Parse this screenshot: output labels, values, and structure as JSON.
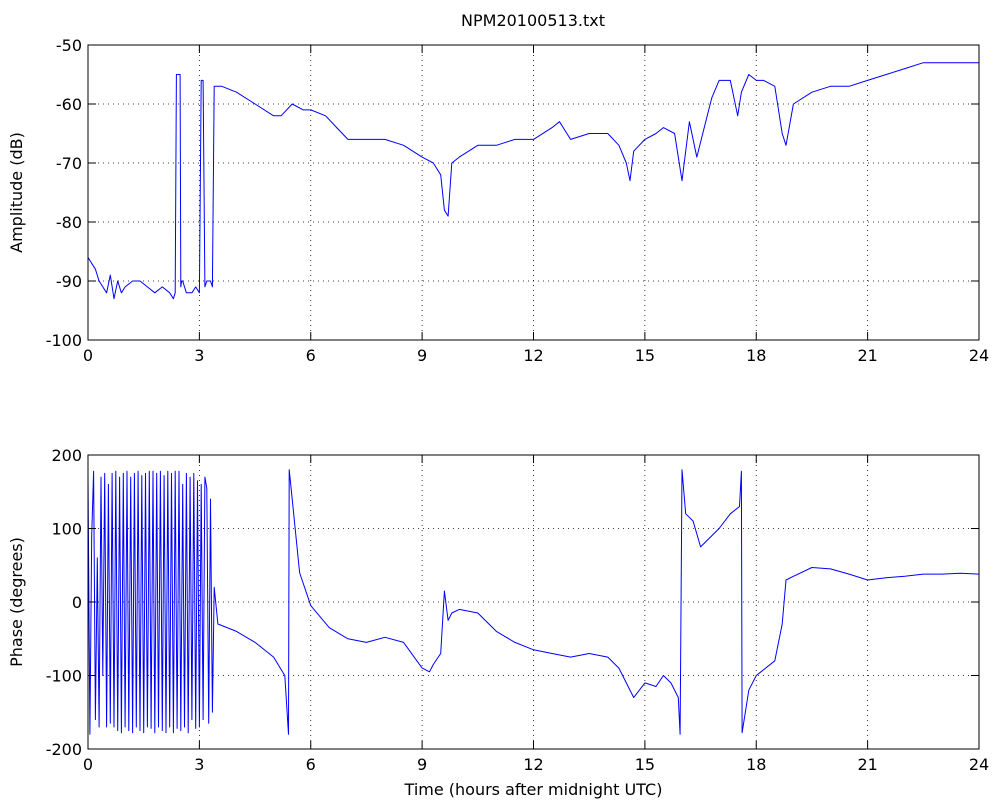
{
  "figure_title": "NPM20100513.txt",
  "chart_data": [
    {
      "type": "line",
      "title": "NPM20100513.txt",
      "xlabel": "",
      "ylabel": "Amplitude (dB)",
      "xlim": [
        0,
        24
      ],
      "ylim": [
        -100,
        -50
      ],
      "xticks": [
        0,
        3,
        6,
        9,
        12,
        15,
        18,
        21,
        24
      ],
      "yticks": [
        -100,
        -90,
        -80,
        -70,
        -60,
        -50
      ],
      "grid": true,
      "series_color": "#0000ff",
      "series": [
        {
          "x": [
            0,
            0.1,
            0.2,
            0.3,
            0.4,
            0.5,
            0.6,
            0.7,
            0.8,
            0.9,
            1.0,
            1.2,
            1.4,
            1.6,
            1.8,
            2.0,
            2.2,
            2.3,
            2.35,
            2.38,
            2.42,
            2.48,
            2.5,
            2.52,
            2.55,
            2.6,
            2.65,
            2.8,
            2.9,
            3.0,
            3.05,
            3.1,
            3.15,
            3.2,
            3.3,
            3.35,
            3.4,
            3.45,
            3.6,
            4.0,
            4.5,
            5.0,
            5.2,
            5.5,
            5.8,
            6.0,
            6.4,
            6.7,
            7.0,
            7.5,
            8.0,
            8.5,
            9.0,
            9.3,
            9.5,
            9.6,
            9.7,
            9.8,
            10.0,
            10.5,
            11.0,
            11.5,
            12.0,
            12.5,
            12.7,
            13.0,
            13.5,
            14.0,
            14.3,
            14.5,
            14.6,
            14.7,
            15.0,
            15.3,
            15.5,
            15.8,
            16.0,
            16.2,
            16.4,
            16.8,
            17.0,
            17.3,
            17.5,
            17.6,
            17.8,
            18.0,
            18.2,
            18.5,
            18.7,
            18.8,
            19.0,
            19.5,
            20.0,
            20.5,
            21.0,
            21.5,
            22.0,
            22.5,
            23.0,
            23.5,
            24.0
          ],
          "y": [
            -86,
            -87,
            -88,
            -90,
            -91,
            -92,
            -89,
            -93,
            -90,
            -92,
            -91,
            -90,
            -90,
            -91,
            -92,
            -91,
            -92,
            -93,
            -92,
            -55,
            -55,
            -55,
            -91,
            -90,
            -90,
            -91,
            -92,
            -92,
            -91,
            -92,
            -56,
            -56,
            -91,
            -90,
            -90,
            -91,
            -57,
            -57,
            -57,
            -58,
            -60,
            -62,
            -62,
            -60,
            -61,
            -61,
            -62,
            -64,
            -66,
            -66,
            -66,
            -67,
            -69,
            -70,
            -72,
            -78,
            -79,
            -70,
            -69,
            -67,
            -67,
            -66,
            -66,
            -64,
            -63,
            -66,
            -65,
            -65,
            -67,
            -70,
            -73,
            -68,
            -66,
            -65,
            -64,
            -65,
            -73,
            -63,
            -69,
            -59,
            -56,
            -56,
            -62,
            -58,
            -55,
            -56,
            -56,
            -57,
            -65,
            -67,
            -60,
            -58,
            -57,
            -57,
            -56,
            -55,
            -54,
            -53,
            -53,
            -53,
            -53
          ]
        }
      ]
    },
    {
      "type": "line",
      "title": "",
      "xlabel": "Time (hours after midnight UTC)",
      "ylabel": "Phase (degrees)",
      "xlim": [
        0,
        24
      ],
      "ylim": [
        -200,
        200
      ],
      "xticks": [
        0,
        3,
        6,
        9,
        12,
        15,
        18,
        21,
        24
      ],
      "yticks": [
        -200,
        -100,
        0,
        100,
        200
      ],
      "grid": true,
      "series_color": "#0000ff",
      "series": [
        {
          "x": [
            0,
            0.05,
            0.1,
            0.15,
            0.2,
            0.25,
            0.3,
            0.35,
            0.4,
            0.45,
            0.5,
            0.55,
            0.6,
            0.65,
            0.7,
            0.75,
            0.8,
            0.85,
            0.9,
            0.95,
            1.0,
            1.05,
            1.1,
            1.15,
            1.2,
            1.25,
            1.3,
            1.35,
            1.4,
            1.45,
            1.5,
            1.55,
            1.6,
            1.65,
            1.7,
            1.75,
            1.8,
            1.85,
            1.9,
            1.95,
            2.0,
            2.05,
            2.1,
            2.15,
            2.2,
            2.25,
            2.3,
            2.35,
            2.4,
            2.45,
            2.5,
            2.55,
            2.6,
            2.65,
            2.7,
            2.75,
            2.8,
            2.85,
            2.9,
            2.95,
            3.0,
            3.05,
            3.1,
            3.15,
            3.2,
            3.25,
            3.3,
            3.35,
            3.4,
            3.5,
            4.0,
            4.5,
            5.0,
            5.3,
            5.4,
            5.42,
            5.5,
            5.7,
            6.0,
            6.5,
            7.0,
            7.5,
            8.0,
            8.5,
            9.0,
            9.2,
            9.3,
            9.5,
            9.6,
            9.7,
            9.8,
            10.0,
            10.5,
            11.0,
            11.5,
            12.0,
            12.5,
            13.0,
            13.5,
            14.0,
            14.3,
            14.5,
            14.7,
            15.0,
            15.3,
            15.5,
            15.7,
            15.9,
            15.95,
            16.0,
            16.1,
            16.3,
            16.5,
            16.7,
            17.0,
            17.3,
            17.55,
            17.6,
            17.62,
            17.8,
            18.0,
            18.5,
            18.7,
            18.8,
            19.0,
            19.5,
            20.0,
            20.5,
            21.0,
            21.5,
            22.0,
            22.5,
            23.0,
            23.5,
            24.0
          ],
          "y": [
            170,
            -180,
            90,
            178,
            -160,
            60,
            -170,
            170,
            -100,
            175,
            -170,
            160,
            -165,
            175,
            -170,
            178,
            -175,
            170,
            -178,
            175,
            -170,
            178,
            -175,
            170,
            -178,
            175,
            -170,
            178,
            -175,
            172,
            -178,
            175,
            -170,
            178,
            -172,
            178,
            -178,
            175,
            -170,
            178,
            -175,
            172,
            -178,
            178,
            -170,
            175,
            -178,
            178,
            -172,
            178,
            -175,
            160,
            -170,
            175,
            -178,
            170,
            -160,
            175,
            -172,
            165,
            -170,
            160,
            -160,
            170,
            155,
            -165,
            140,
            -150,
            20,
            -30,
            -40,
            -55,
            -75,
            -100,
            -180,
            180,
            140,
            40,
            -5,
            -35,
            -50,
            -55,
            -48,
            -55,
            -90,
            -95,
            -85,
            -70,
            15,
            -25,
            -15,
            -10,
            -15,
            -40,
            -55,
            -65,
            -70,
            -75,
            -70,
            -75,
            -90,
            -110,
            -130,
            -110,
            -115,
            -100,
            -110,
            -130,
            -180,
            180,
            120,
            110,
            75,
            85,
            100,
            120,
            130,
            178,
            -178,
            -120,
            -100,
            -80,
            -30,
            30,
            35,
            47,
            45,
            38,
            30,
            33,
            35,
            38,
            38,
            39,
            38
          ]
        }
      ]
    }
  ]
}
